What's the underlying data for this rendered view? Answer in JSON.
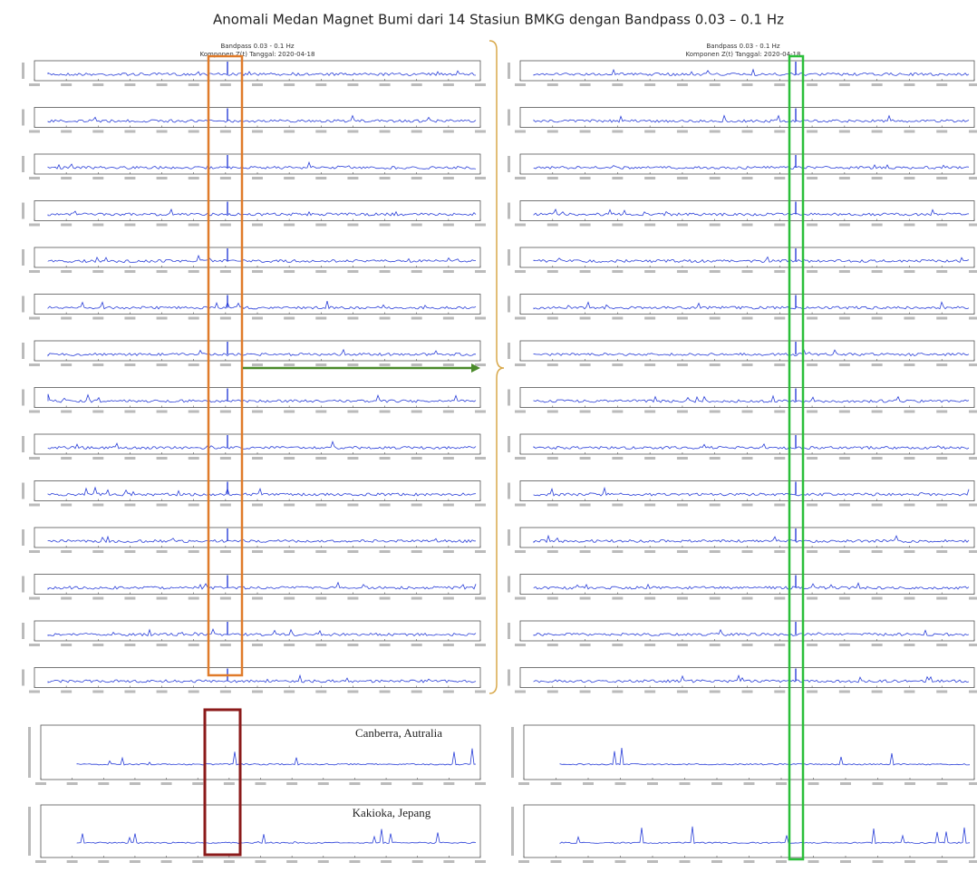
{
  "title": "Anomali Medan Magnet Bumi dari 14 Stasiun BMKG dengan Bandpass 0.03 – 0.1 Hz",
  "left_panel": {
    "header": [
      "Bandpass 0.03 - 0.1 Hz",
      "Komponen Z(t) Tanggal: 2020-04-18"
    ]
  },
  "right_panel": {
    "header": [
      "Bandpass 0.03 - 0.1 Hz",
      "Komponen Z(t) Tanggal: 2020-04-18"
    ]
  },
  "annotations": [
    "Canberra, Autralia",
    "Kakioka, Jepang"
  ]
}
